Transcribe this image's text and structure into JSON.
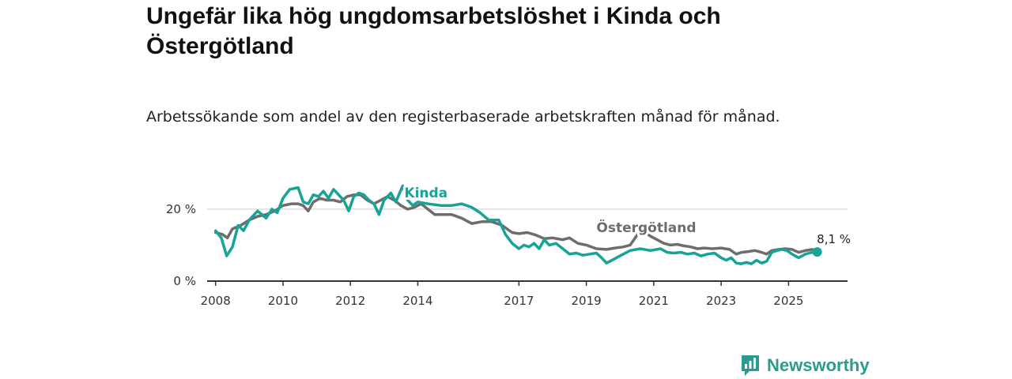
{
  "header": {
    "title": "Ungefär lika hög ungdomsarbetslöshet i Kinda och Östergötland",
    "subtitle": "Arbetssökande som andel av den registerbaserade arbetskraften månad för månad."
  },
  "brand": {
    "name": "Newsworthy",
    "icon": "newsworthy-logo-icon",
    "color": "#2b9a90"
  },
  "colors": {
    "kinda": "#17a395",
    "ostergotland": "#6d6d6d",
    "grid": "#dddddd",
    "axis": "#333333"
  },
  "chart_data": {
    "type": "line",
    "title": "Ungefär lika hög ungdomsarbetslöshet i Kinda och Östergötland",
    "subtitle": "Arbetssökande som andel av den registerbaserade arbetskraften månad för månad.",
    "x_unit": "year",
    "xlim": [
      2007.75,
      2026.75
    ],
    "ylim": [
      0,
      27
    ],
    "y_ticks": [
      {
        "value": 0,
        "label": "0 %"
      },
      {
        "value": 20,
        "label": "20 %"
      }
    ],
    "x_ticks": [
      {
        "value": 2008,
        "label": "2008"
      },
      {
        "value": 2010,
        "label": "2010"
      },
      {
        "value": 2012,
        "label": "2012"
      },
      {
        "value": 2014,
        "label": "2014"
      },
      {
        "value": 2017,
        "label": "2017"
      },
      {
        "value": 2019,
        "label": "2019"
      },
      {
        "value": 2021,
        "label": "2021"
      },
      {
        "value": 2023,
        "label": "2023"
      },
      {
        "value": 2025,
        "label": "2025"
      }
    ],
    "series": [
      {
        "name": "Kinda",
        "color": "#17a395",
        "label_at": [
          2013.6,
          23.3
        ],
        "points": [
          [
            2008.0,
            14.0
          ],
          [
            2008.17,
            12.0
          ],
          [
            2008.33,
            7.0
          ],
          [
            2008.5,
            9.5
          ],
          [
            2008.67,
            15.5
          ],
          [
            2008.83,
            14.0
          ],
          [
            2009.0,
            17.0
          ],
          [
            2009.25,
            19.5
          ],
          [
            2009.5,
            17.5
          ],
          [
            2009.67,
            20.0
          ],
          [
            2009.83,
            19.0
          ],
          [
            2010.0,
            23.0
          ],
          [
            2010.2,
            25.5
          ],
          [
            2010.45,
            26.0
          ],
          [
            2010.6,
            22.0
          ],
          [
            2010.75,
            21.5
          ],
          [
            2010.9,
            24.0
          ],
          [
            2011.05,
            23.5
          ],
          [
            2011.2,
            25.0
          ],
          [
            2011.35,
            23.0
          ],
          [
            2011.5,
            25.5
          ],
          [
            2011.65,
            24.0
          ],
          [
            2011.8,
            22.5
          ],
          [
            2011.95,
            19.5
          ],
          [
            2012.1,
            23.5
          ],
          [
            2012.25,
            24.5
          ],
          [
            2012.4,
            24.0
          ],
          [
            2012.55,
            22.5
          ],
          [
            2012.7,
            21.5
          ],
          [
            2012.85,
            18.5
          ],
          [
            2013.0,
            22.5
          ],
          [
            2013.2,
            24.5
          ],
          [
            2013.35,
            22.0
          ],
          [
            2013.55,
            26.5
          ],
          [
            2013.7,
            22.5
          ],
          [
            2013.85,
            21.0
          ],
          [
            2014.0,
            22.0
          ],
          [
            2014.3,
            21.5
          ],
          [
            2014.7,
            21.0
          ],
          [
            2015.0,
            21.0
          ],
          [
            2015.3,
            21.5
          ],
          [
            2015.6,
            20.5
          ],
          [
            2015.85,
            19.0
          ],
          [
            2016.1,
            17.0
          ],
          [
            2016.4,
            17.0
          ],
          [
            2016.6,
            13.0
          ],
          [
            2016.8,
            10.5
          ],
          [
            2017.0,
            9.0
          ],
          [
            2017.15,
            10.0
          ],
          [
            2017.3,
            9.5
          ],
          [
            2017.45,
            10.5
          ],
          [
            2017.6,
            9.0
          ],
          [
            2017.75,
            11.5
          ],
          [
            2017.9,
            10.0
          ],
          [
            2018.1,
            10.5
          ],
          [
            2018.3,
            9.0
          ],
          [
            2018.5,
            7.5
          ],
          [
            2018.7,
            7.8
          ],
          [
            2018.9,
            7.2
          ],
          [
            2019.1,
            7.5
          ],
          [
            2019.3,
            7.8
          ],
          [
            2019.45,
            6.5
          ],
          [
            2019.6,
            5.0
          ],
          [
            2019.8,
            6.0
          ],
          [
            2020.0,
            7.0
          ],
          [
            2020.3,
            8.5
          ],
          [
            2020.6,
            9.0
          ],
          [
            2020.9,
            8.5
          ],
          [
            2021.2,
            9.0
          ],
          [
            2021.4,
            8.0
          ],
          [
            2021.6,
            7.8
          ],
          [
            2021.8,
            8.0
          ],
          [
            2022.0,
            7.5
          ],
          [
            2022.2,
            7.8
          ],
          [
            2022.4,
            7.0
          ],
          [
            2022.6,
            7.5
          ],
          [
            2022.8,
            7.8
          ],
          [
            2023.0,
            6.5
          ],
          [
            2023.15,
            5.8
          ],
          [
            2023.3,
            6.5
          ],
          [
            2023.45,
            5.0
          ],
          [
            2023.6,
            4.8
          ],
          [
            2023.75,
            5.2
          ],
          [
            2023.9,
            4.8
          ],
          [
            2024.05,
            5.8
          ],
          [
            2024.2,
            5.0
          ],
          [
            2024.35,
            5.5
          ],
          [
            2024.5,
            8.0
          ],
          [
            2024.65,
            8.5
          ],
          [
            2024.8,
            8.8
          ],
          [
            2024.95,
            8.5
          ],
          [
            2025.1,
            7.5
          ],
          [
            2025.3,
            6.5
          ],
          [
            2025.5,
            7.5
          ],
          [
            2025.7,
            8.0
          ],
          [
            2025.85,
            8.1
          ]
        ]
      },
      {
        "name": "Östergötland",
        "color": "#6d6d6d",
        "label_at": [
          2019.3,
          13.6
        ],
        "points": [
          [
            2008.0,
            13.5
          ],
          [
            2008.2,
            13.0
          ],
          [
            2008.35,
            12.0
          ],
          [
            2008.5,
            14.5
          ],
          [
            2008.75,
            15.5
          ],
          [
            2009.0,
            17.0
          ],
          [
            2009.25,
            18.0
          ],
          [
            2009.5,
            18.5
          ],
          [
            2009.75,
            19.5
          ],
          [
            2010.0,
            21.0
          ],
          [
            2010.25,
            21.5
          ],
          [
            2010.45,
            21.5
          ],
          [
            2010.6,
            21.0
          ],
          [
            2010.75,
            19.5
          ],
          [
            2010.9,
            22.0
          ],
          [
            2011.1,
            23.0
          ],
          [
            2011.3,
            22.5
          ],
          [
            2011.5,
            22.5
          ],
          [
            2011.7,
            22.0
          ],
          [
            2011.9,
            23.5
          ],
          [
            2012.1,
            24.0
          ],
          [
            2012.3,
            24.0
          ],
          [
            2012.5,
            22.5
          ],
          [
            2012.7,
            21.5
          ],
          [
            2012.9,
            22.5
          ],
          [
            2013.1,
            23.5
          ],
          [
            2013.3,
            22.5
          ],
          [
            2013.5,
            21.0
          ],
          [
            2013.7,
            20.0
          ],
          [
            2013.9,
            20.5
          ],
          [
            2014.1,
            21.5
          ],
          [
            2014.3,
            20.0
          ],
          [
            2014.5,
            18.5
          ],
          [
            2014.7,
            18.5
          ],
          [
            2015.0,
            18.5
          ],
          [
            2015.3,
            17.5
          ],
          [
            2015.6,
            16.0
          ],
          [
            2015.9,
            16.5
          ],
          [
            2016.2,
            16.5
          ],
          [
            2016.5,
            15.5
          ],
          [
            2016.8,
            13.5
          ],
          [
            2017.0,
            13.2
          ],
          [
            2017.25,
            13.5
          ],
          [
            2017.5,
            12.8
          ],
          [
            2017.75,
            11.8
          ],
          [
            2018.0,
            12.0
          ],
          [
            2018.3,
            11.5
          ],
          [
            2018.5,
            12.0
          ],
          [
            2018.75,
            10.5
          ],
          [
            2019.0,
            10.0
          ],
          [
            2019.3,
            9.0
          ],
          [
            2019.6,
            8.8
          ],
          [
            2019.85,
            9.2
          ],
          [
            2020.1,
            9.5
          ],
          [
            2020.3,
            10.0
          ],
          [
            2020.45,
            12.0
          ],
          [
            2020.6,
            14.0
          ],
          [
            2020.75,
            13.5
          ],
          [
            2020.9,
            12.5
          ],
          [
            2021.1,
            11.5
          ],
          [
            2021.3,
            10.5
          ],
          [
            2021.5,
            10.0
          ],
          [
            2021.7,
            10.2
          ],
          [
            2021.9,
            9.8
          ],
          [
            2022.1,
            9.5
          ],
          [
            2022.3,
            9.0
          ],
          [
            2022.5,
            9.2
          ],
          [
            2022.75,
            9.0
          ],
          [
            2023.0,
            9.2
          ],
          [
            2023.25,
            8.8
          ],
          [
            2023.45,
            7.5
          ],
          [
            2023.6,
            8.0
          ],
          [
            2023.8,
            8.2
          ],
          [
            2024.0,
            8.5
          ],
          [
            2024.2,
            8.0
          ],
          [
            2024.35,
            7.5
          ],
          [
            2024.5,
            8.5
          ],
          [
            2024.7,
            8.8
          ],
          [
            2024.9,
            9.0
          ],
          [
            2025.1,
            8.8
          ],
          [
            2025.3,
            8.0
          ],
          [
            2025.5,
            8.5
          ],
          [
            2025.7,
            8.8
          ],
          [
            2025.85,
            8.5
          ]
        ]
      }
    ],
    "annotations": [
      {
        "text": "Kinda",
        "series": "Kinda"
      },
      {
        "text": "Östergötland",
        "series": "Östergötland"
      },
      {
        "text": "8,1 %",
        "series": "Kinda",
        "x": 2025.85,
        "y": 8.1
      }
    ]
  }
}
